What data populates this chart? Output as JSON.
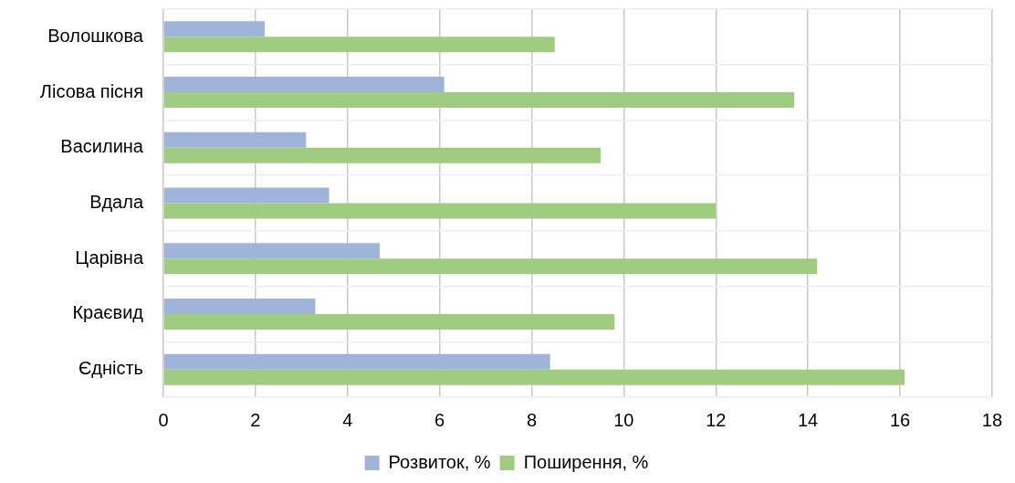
{
  "chart_data": {
    "type": "bar",
    "orientation": "horizontal",
    "categories": [
      "Волошкова",
      "Лісова пісня",
      "Василина",
      "Вдала",
      "Царівна",
      "Краєвид",
      "Єдність"
    ],
    "series": [
      {
        "name": "Розвиток, %",
        "color": "#9fb4d8",
        "values": [
          2.2,
          6.1,
          3.1,
          3.6,
          4.7,
          3.3,
          8.4
        ]
      },
      {
        "name": "Поширення, %",
        "color": "#a0cc82",
        "values": [
          8.5,
          13.7,
          9.5,
          12.0,
          14.2,
          9.8,
          16.1
        ]
      }
    ],
    "xlim": [
      0,
      18
    ],
    "xticks": [
      0,
      2,
      4,
      6,
      8,
      10,
      12,
      14,
      16,
      18
    ],
    "grid": true,
    "legend": "bottom"
  }
}
